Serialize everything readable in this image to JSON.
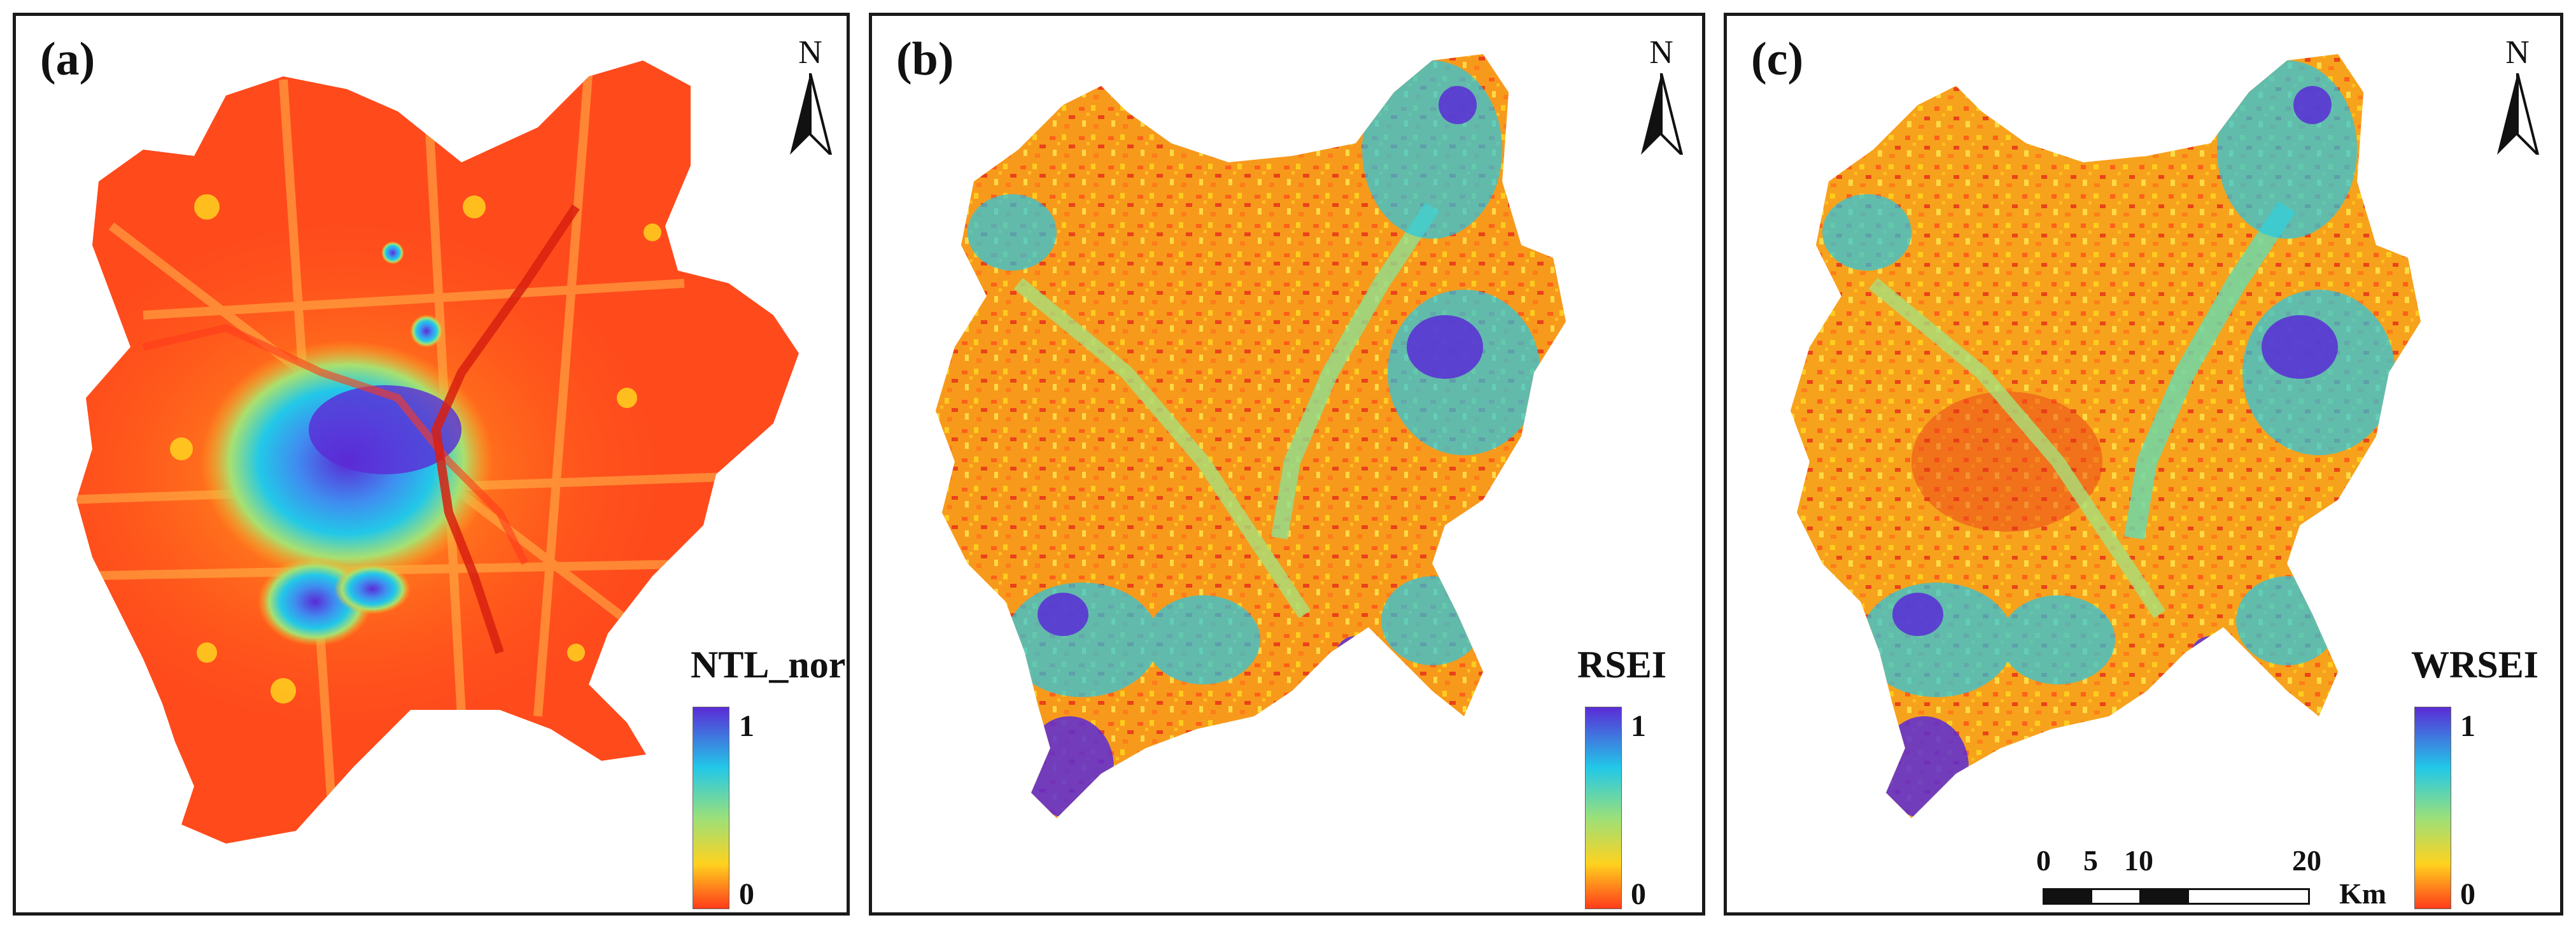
{
  "colors": {
    "scale_high": "#5b2bd6",
    "scale_upper": "#22c8e8",
    "scale_mid": "#9be07a",
    "scale_low": "#ffd21e",
    "scale_min": "#ff3b1a",
    "frame": "#1a1a1a"
  },
  "north_arrow": {
    "letter": "N",
    "icon": "north-arrow-icon"
  },
  "panels": [
    {
      "label": "(a)",
      "legend_title": "NTL_nor",
      "legend_max": "1",
      "legend_min": "0"
    },
    {
      "label": "(b)",
      "legend_title": "RSEI",
      "legend_max": "1",
      "legend_min": "0"
    },
    {
      "label": "(c)",
      "legend_title": "WRSEI",
      "legend_max": "1",
      "legend_min": "0"
    }
  ],
  "scale_bar": {
    "ticks": [
      "0",
      "5",
      "10",
      "20"
    ],
    "unit": "Km"
  }
}
